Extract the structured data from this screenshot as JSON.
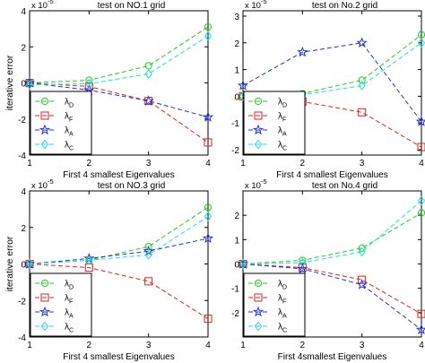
{
  "figure": {
    "multiplier_label": "x 10",
    "multiplier_exp": "-5"
  },
  "colors": {
    "D": "#22cc22",
    "F": "#dd2222",
    "A": "#2233cc",
    "C": "#22dddd"
  },
  "chart_data": [
    {
      "type": "line",
      "title": "test on NO.1  grid",
      "xlabel": "First 4 smallest Eigenvalues",
      "ylabel": "iterative error",
      "x": [
        1,
        2,
        3,
        4
      ],
      "xticks": [
        "1",
        "2",
        "3",
        "4"
      ],
      "yticks": [
        "-4",
        "-2",
        "0",
        "2",
        "4"
      ],
      "ylim": [
        -4,
        4
      ],
      "scale_note": "x 10^-5",
      "legend": "bottom-left",
      "series": [
        {
          "key": "D",
          "sub": "D",
          "marker": "circle",
          "values": [
            0,
            0.15,
            0.95,
            3.1
          ]
        },
        {
          "key": "F",
          "sub": "F",
          "marker": "square",
          "values": [
            0,
            -0.2,
            -1.0,
            -3.3
          ]
        },
        {
          "key": "A",
          "sub": "A",
          "marker": "star",
          "values": [
            0,
            -0.4,
            -1.0,
            -1.9
          ]
        },
        {
          "key": "C",
          "sub": "C",
          "marker": "diamond",
          "values": [
            -0.1,
            -0.05,
            0.5,
            2.6
          ]
        }
      ]
    },
    {
      "type": "line",
      "title": "test on No.2 grid",
      "xlabel": "First 4 smallest Eigenvalues",
      "ylabel": "",
      "x": [
        1,
        2,
        3,
        4
      ],
      "xticks": [
        "1",
        "2",
        "3",
        "4"
      ],
      "yticks": [
        "-2",
        "-1",
        "0",
        "1",
        "2",
        "3"
      ],
      "ylim": [
        -2.2,
        3.2
      ],
      "scale_note": "x 10^-5",
      "legend": "bottom-left",
      "series": [
        {
          "key": "D",
          "sub": "D",
          "marker": "circle",
          "values": [
            0,
            0.1,
            0.6,
            2.3
          ]
        },
        {
          "key": "F",
          "sub": "F",
          "marker": "square",
          "values": [
            0,
            -0.2,
            -0.6,
            -1.9
          ]
        },
        {
          "key": "A",
          "sub": "A",
          "marker": "star",
          "values": [
            0.4,
            1.65,
            2.0,
            -0.95
          ]
        },
        {
          "key": "C",
          "sub": "C",
          "marker": "diamond",
          "values": [
            0,
            0.05,
            0.4,
            2.0
          ]
        }
      ]
    },
    {
      "type": "line",
      "title": "test on NO.3  grid",
      "xlabel": "First 4 smallest Eigenvalues",
      "ylabel": "iterative  error",
      "x": [
        1,
        2,
        3,
        4
      ],
      "xticks": [
        "1",
        "2",
        "3",
        "4"
      ],
      "yticks": [
        "-4",
        "-2",
        "0",
        "2",
        "4"
      ],
      "ylim": [
        -4,
        4
      ],
      "scale_note": "x 10^-5",
      "legend": "bottom-left",
      "series": [
        {
          "key": "D",
          "sub": "D",
          "marker": "circle",
          "values": [
            0,
            0.2,
            0.95,
            3.1
          ]
        },
        {
          "key": "F",
          "sub": "F",
          "marker": "square",
          "values": [
            0,
            -0.2,
            -0.95,
            -3.0
          ]
        },
        {
          "key": "A",
          "sub": "A",
          "marker": "star",
          "values": [
            0,
            0.3,
            0.7,
            1.4
          ]
        },
        {
          "key": "C",
          "sub": "C",
          "marker": "diamond",
          "values": [
            0,
            0.2,
            0.5,
            2.6
          ]
        }
      ]
    },
    {
      "type": "line",
      "title": "test on No.4 grid",
      "xlabel": "First 4smallest Eigenvalues",
      "ylabel": "",
      "x": [
        1,
        2,
        3,
        4
      ],
      "xticks": [
        "1",
        "2",
        "3",
        "4"
      ],
      "yticks": [
        "-2",
        "-1",
        "0",
        "1",
        "2"
      ],
      "ylim": [
        -3,
        3
      ],
      "scale_note": "x 10^-5",
      "legend": "bottom-left",
      "series": [
        {
          "key": "D",
          "sub": "D",
          "marker": "circle",
          "values": [
            0,
            0.15,
            0.65,
            2.1
          ]
        },
        {
          "key": "F",
          "sub": "F",
          "marker": "square",
          "values": [
            0,
            -0.15,
            -0.65,
            -2.05
          ]
        },
        {
          "key": "A",
          "sub": "A",
          "marker": "star",
          "values": [
            0,
            -0.2,
            -0.85,
            -2.7
          ]
        },
        {
          "key": "C",
          "sub": "C",
          "marker": "diamond",
          "values": [
            0,
            0.05,
            0.5,
            2.6
          ]
        }
      ]
    }
  ]
}
